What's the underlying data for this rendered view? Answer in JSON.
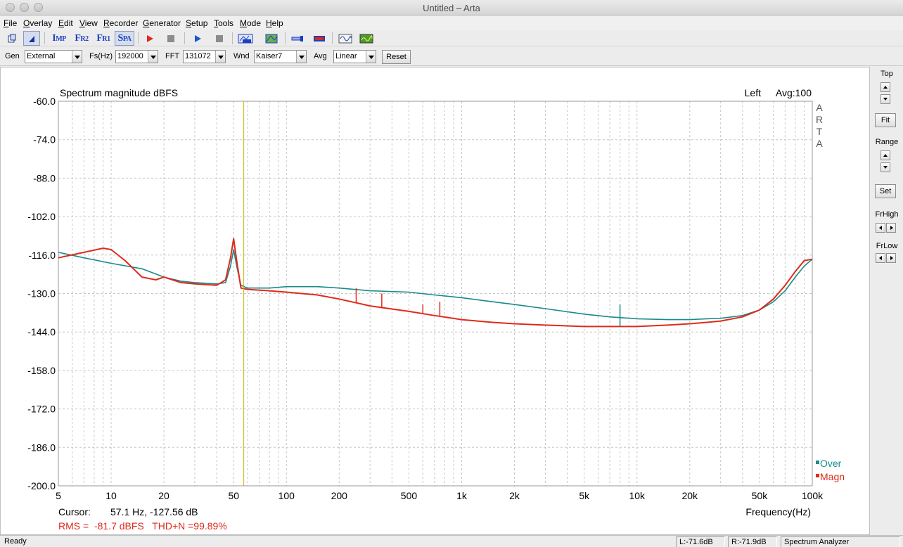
{
  "window": {
    "title": "Untitled – Arta"
  },
  "menu": [
    "File",
    "Overlay",
    "Edit",
    "View",
    "Recorder",
    "Generator",
    "Setup",
    "Tools",
    "Mode",
    "Help"
  ],
  "toolbar": {
    "imp_label": "I",
    "imp_sub": "MP",
    "fr2_label": "F",
    "fr2_sub": "R2",
    "fr1_label": "F",
    "fr1_sub": "R1",
    "spa_label": "S",
    "spa_sub": "PA"
  },
  "params": {
    "gen_label": "Gen",
    "gen_value": "External",
    "fs_label": "Fs(Hz)",
    "fs_value": "192000",
    "fft_label": "FFT",
    "fft_value": "131072",
    "wnd_label": "Wnd",
    "wnd_value": "Kaiser7",
    "avg_label": "Avg",
    "avg_value": "Linear",
    "reset_label": "Reset"
  },
  "right_panel": {
    "top_label": "Top",
    "fit_label": "Fit",
    "range_label": "Range",
    "set_label": "Set",
    "frhigh_label": "FrHigh",
    "frlow_label": "FrLow"
  },
  "plot": {
    "title": "Spectrum magnitude dBFS",
    "channel": "Left",
    "avg": "Avg:100",
    "watermark": [
      "A",
      "R",
      "T",
      "A"
    ],
    "cursor_label": "Cursor:",
    "cursor_value": "57.1 Hz, -127.56 dB",
    "rms_text": "RMS =  -81.7 dBFS   THD+N =99.89%",
    "legend_over": "Over",
    "legend_magn": "Magn",
    "colors": {
      "over": "#1a8a8a",
      "magn": "#e02a1a",
      "cursor": "#c8b400"
    }
  },
  "chart_data": {
    "type": "line",
    "title": "Spectrum magnitude dBFS",
    "xlabel": "Frequency(Hz)",
    "ylabel": "",
    "x_scale": "log",
    "xlim": [
      5,
      100000
    ],
    "ylim": [
      -200,
      -60
    ],
    "x_ticks": [
      5,
      10,
      20,
      50,
      100,
      200,
      500,
      1000,
      2000,
      5000,
      10000,
      20000,
      50000,
      100000
    ],
    "x_tick_labels": [
      "5",
      "10",
      "20",
      "50",
      "100",
      "200",
      "500",
      "1k",
      "2k",
      "5k",
      "10k",
      "20k",
      "50k",
      "100k"
    ],
    "y_ticks": [
      -60,
      -74,
      -88,
      -102,
      -116,
      -130,
      -144,
      -158,
      -172,
      -186,
      -200
    ],
    "y_tick_labels": [
      "-60.0",
      "-74.0",
      "-88.0",
      "-102.0",
      "-116.0",
      "-130.0",
      "-144.0",
      "-158.0",
      "-172.0",
      "-186.0",
      "-200.0"
    ],
    "grid": true,
    "legend": "bottom-right",
    "cursor_x": 57.1,
    "series": [
      {
        "name": "Over",
        "x": [
          5,
          7,
          10,
          15,
          20,
          25,
          30,
          40,
          45,
          48,
          50,
          52,
          55,
          60,
          80,
          100,
          150,
          200,
          300,
          500,
          700,
          1000,
          1500,
          2000,
          3000,
          5000,
          7000,
          10000,
          15000,
          20000,
          25000,
          30000,
          40000,
          50000,
          60000,
          70000,
          80000,
          90000,
          100000
        ],
        "y": [
          -115,
          -117,
          -119,
          -121,
          -124,
          -125.5,
          -126,
          -126.5,
          -126,
          -120,
          -114,
          -120,
          -127,
          -128,
          -128,
          -127.5,
          -127.5,
          -128,
          -129,
          -129.5,
          -130.5,
          -131.5,
          -133,
          -134,
          -135.5,
          -137.5,
          -138.5,
          -139.2,
          -139.5,
          -139.5,
          -139.2,
          -139,
          -138,
          -136,
          -133,
          -129,
          -124,
          -120,
          -117.5
        ]
      },
      {
        "name": "Magn",
        "x": [
          5,
          7,
          9,
          10,
          12,
          15,
          18,
          20,
          25,
          30,
          40,
          45,
          48,
          50,
          52,
          55,
          60,
          80,
          100,
          150,
          200,
          300,
          500,
          700,
          1000,
          1500,
          2000,
          3000,
          5000,
          7000,
          10000,
          15000,
          20000,
          25000,
          30000,
          40000,
          50000,
          60000,
          70000,
          80000,
          90000,
          100000
        ],
        "y": [
          -117,
          -115,
          -113.5,
          -114,
          -118,
          -124,
          -125,
          -124,
          -126,
          -126.5,
          -127,
          -125,
          -117,
          -110,
          -118,
          -128,
          -128.5,
          -129,
          -129.5,
          -130.5,
          -132,
          -134.5,
          -136.5,
          -138,
          -139.5,
          -140.5,
          -141,
          -141.5,
          -142,
          -142,
          -142,
          -141.5,
          -141,
          -140.5,
          -140,
          -138.5,
          -136,
          -132,
          -127,
          -122,
          -118,
          -117.5
        ]
      }
    ],
    "spikes": [
      {
        "x": 250,
        "y": -128
      },
      {
        "x": 350,
        "y": -130
      },
      {
        "x": 600,
        "y": -134
      },
      {
        "x": 750,
        "y": -133
      },
      {
        "x": 8000,
        "y": -134
      }
    ]
  },
  "status": {
    "ready": "Ready",
    "left_level": "L:-71.6dB",
    "right_level": "R:-71.9dB",
    "mode": "Spectrum Analyzer"
  }
}
